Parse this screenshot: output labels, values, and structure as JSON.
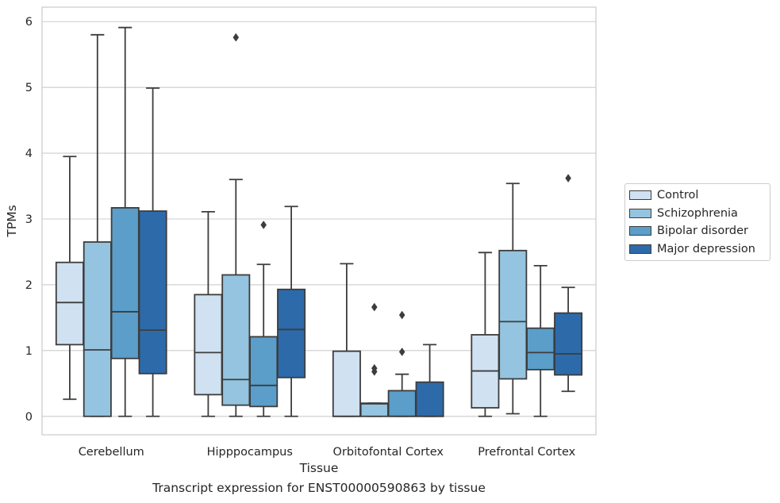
{
  "caption": "Transcript expression for ENST00000590863 by tissue",
  "chart_data": {
    "type": "box",
    "xlabel": "Tissue",
    "ylabel": "TPMs",
    "ylim": [
      -0.28,
      6.22
    ],
    "yticks": [
      0,
      1,
      2,
      3,
      4,
      5,
      6
    ],
    "grid": "horizontal",
    "legend_position": "right",
    "categories": [
      "Cerebellum",
      "Hipppocampus",
      "Orbitofontal Cortex",
      "Prefrontal Cortex"
    ],
    "series": [
      {
        "name": "Control",
        "color": "#d0e1f2",
        "boxes": [
          {
            "whisker_low": 0.26,
            "q1": 1.09,
            "median": 1.73,
            "q3": 2.34,
            "whisker_high": 3.95,
            "outliers": []
          },
          {
            "whisker_low": 0.0,
            "q1": 0.33,
            "median": 0.97,
            "q3": 1.85,
            "whisker_high": 3.11,
            "outliers": []
          },
          {
            "whisker_low": 0.0,
            "q1": 0.0,
            "median": 0.0,
            "q3": 0.99,
            "whisker_high": 2.32,
            "outliers": []
          },
          {
            "whisker_low": 0.0,
            "q1": 0.13,
            "median": 0.69,
            "q3": 1.24,
            "whisker_high": 2.49,
            "outliers": []
          }
        ]
      },
      {
        "name": "Schizophrenia",
        "color": "#94c4df",
        "boxes": [
          {
            "whisker_low": 0.0,
            "q1": 0.0,
            "median": 1.01,
            "q3": 2.65,
            "whisker_high": 5.8,
            "outliers": []
          },
          {
            "whisker_low": 0.0,
            "q1": 0.17,
            "median": 0.56,
            "q3": 2.15,
            "whisker_high": 3.6,
            "outliers": [
              5.76
            ]
          },
          {
            "whisker_low": 0.0,
            "q1": 0.0,
            "median": 0.19,
            "q3": 0.2,
            "whisker_high": 0.2,
            "outliers": [
              0.68,
              0.73,
              1.66
            ]
          },
          {
            "whisker_low": 0.04,
            "q1": 0.57,
            "median": 1.44,
            "q3": 2.52,
            "whisker_high": 3.54,
            "outliers": []
          }
        ]
      },
      {
        "name": "Bipolar disorder",
        "color": "#5a9ec9",
        "boxes": [
          {
            "whisker_low": 0.0,
            "q1": 0.88,
            "median": 1.59,
            "q3": 3.17,
            "whisker_high": 5.91,
            "outliers": []
          },
          {
            "whisker_low": 0.0,
            "q1": 0.15,
            "median": 0.47,
            "q3": 1.21,
            "whisker_high": 2.31,
            "outliers": [
              2.91
            ]
          },
          {
            "whisker_low": 0.0,
            "q1": 0.0,
            "median": 0.0,
            "q3": 0.39,
            "whisker_high": 0.64,
            "outliers": [
              0.98,
              1.54
            ]
          },
          {
            "whisker_low": 0.0,
            "q1": 0.71,
            "median": 0.97,
            "q3": 1.34,
            "whisker_high": 2.29,
            "outliers": []
          }
        ]
      },
      {
        "name": "Major depression",
        "color": "#2d6aaa",
        "boxes": [
          {
            "whisker_low": 0.0,
            "q1": 0.65,
            "median": 1.31,
            "q3": 3.12,
            "whisker_high": 4.99,
            "outliers": []
          },
          {
            "whisker_low": 0.0,
            "q1": 0.59,
            "median": 1.32,
            "q3": 1.93,
            "whisker_high": 3.19,
            "outliers": []
          },
          {
            "whisker_low": 0.0,
            "q1": 0.0,
            "median": 0.0,
            "q3": 0.52,
            "whisker_high": 1.09,
            "outliers": []
          },
          {
            "whisker_low": 0.38,
            "q1": 0.63,
            "median": 0.95,
            "q3": 1.57,
            "whisker_high": 1.96,
            "outliers": [
              3.62
            ]
          }
        ]
      }
    ]
  }
}
